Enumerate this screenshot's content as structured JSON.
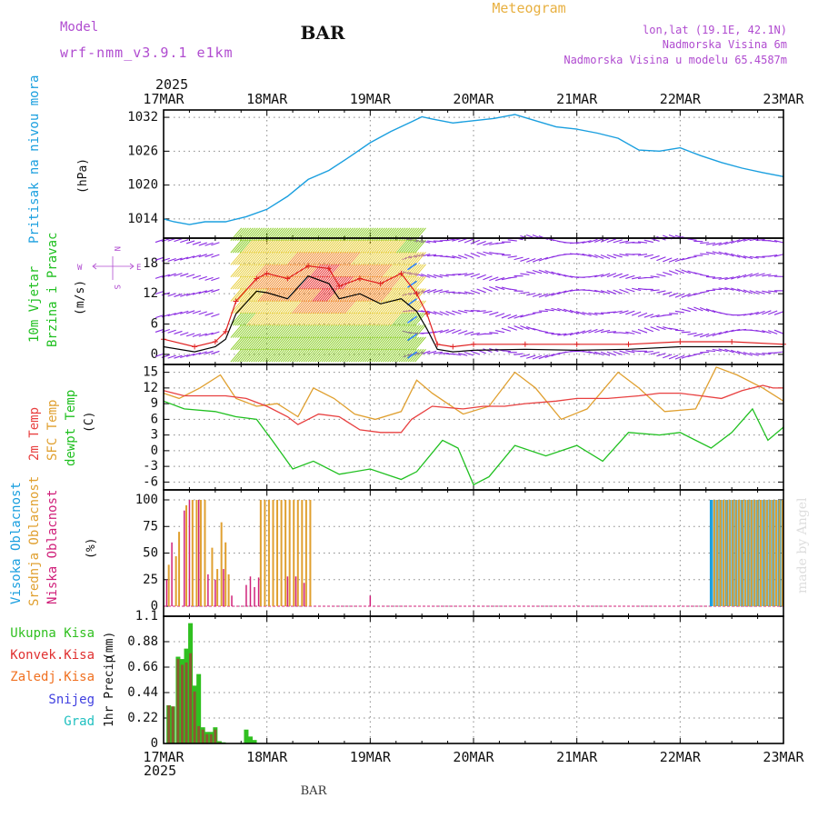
{
  "header": {
    "model_label": "Model",
    "model_name": "wrf-nmm_v3.9.1 e1km",
    "station": "BAR",
    "product": "Meteogram",
    "lonlat": "lon,lat (19.1E, 42.1N)",
    "elevation": "Nadmorska Visina 6m",
    "model_elevation": "Nadmorska Visina u modelu 65.4587m",
    "year_top": "2025",
    "year_bottom": "2025",
    "footer_station": "BAR",
    "credit": "made by Angel"
  },
  "colors": {
    "pressure": "#1a9fdf",
    "wind_avg": "#000000",
    "gust": "#e02020",
    "temp2m": "#e84040",
    "sfc_temp": "#e0a030",
    "dewpt": "#20c020",
    "high_cloud": "#1a9fdf",
    "mid_cloud": "#e0a030",
    "low_cloud": "#d0207a",
    "total_precip": "#30c020",
    "conv_precip": "#e03030",
    "frozen": "#f07020",
    "snow": "#4040e0",
    "hail": "#20c0c0",
    "label_purple": "#b04cd0",
    "label_orange": "#e8b040"
  },
  "chart_data": [
    {
      "type": "line",
      "panel": "pressure",
      "ylabel_name": "Pritisak na nivou mora",
      "ylabel_unit": "(hPa)",
      "x_ticks": [
        "17MAR",
        "18MAR",
        "19MAR",
        "20MAR",
        "21MAR",
        "22MAR",
        "23MAR"
      ],
      "y_ticks": [
        "1014",
        "1020",
        "1026",
        "1032"
      ],
      "ylim": [
        1010.6,
        1033.3
      ],
      "series": [
        {
          "x": [
            0,
            0.1,
            0.25,
            0.4,
            0.6,
            0.8,
            1.0,
            1.2,
            1.4,
            1.6,
            1.8,
            2.0,
            2.2,
            2.4,
            2.5,
            2.6,
            2.8,
            3.0,
            3.2,
            3.4,
            3.6,
            3.8,
            4.0,
            4.2,
            4.4,
            4.6,
            4.8,
            5.0,
            5.2,
            5.4,
            5.6,
            5.8,
            6.0
          ],
          "y": [
            1014,
            1013.5,
            1013.0,
            1013.5,
            1013.5,
            1014.4,
            1015.7,
            1018.0,
            1021.0,
            1022.6,
            1025.0,
            1027.5,
            1029.5,
            1031.2,
            1032.1,
            1031.7,
            1031.0,
            1031.4,
            1031.8,
            1032.5,
            1031.4,
            1030.3,
            1029.9,
            1029.2,
            1028.3,
            1026.2,
            1026.0,
            1026.6,
            1025.2,
            1024.0,
            1023.0,
            1022.2,
            1021.5
          ]
        }
      ]
    },
    {
      "type": "line",
      "panel": "wind",
      "ylabel_name": "10m Vjetar",
      "ylabel_name2": "Brzina i Pravac",
      "ylabel_unit": "(m/s)",
      "y_ticks": [
        "0",
        "6",
        "12",
        "18"
      ],
      "ylim": [
        -2,
        23
      ],
      "compass": {
        "n": "N",
        "s": "S",
        "e": "E",
        "w": "W"
      },
      "series": [
        {
          "name": "avg",
          "x": [
            0,
            0.3,
            0.5,
            0.6,
            0.7,
            0.9,
            1.0,
            1.2,
            1.4,
            1.6,
            1.7,
            1.9,
            2.1,
            2.3,
            2.45,
            2.55,
            2.65,
            2.8,
            3.0,
            3.5,
            4.0,
            4.5,
            5.0,
            5.5,
            6.0
          ],
          "y": [
            1.5,
            0.5,
            1.5,
            3.0,
            8.0,
            12.5,
            12.2,
            11.0,
            15.5,
            14.0,
            11.0,
            12.0,
            10.0,
            11.0,
            8.5,
            5.0,
            1.0,
            0.5,
            0.8,
            1.0,
            0.8,
            1.0,
            1.5,
            1.5,
            1.5
          ]
        },
        {
          "name": "gust",
          "x": [
            0,
            0.3,
            0.5,
            0.6,
            0.7,
            0.9,
            1.0,
            1.2,
            1.4,
            1.6,
            1.7,
            1.9,
            2.1,
            2.3,
            2.45,
            2.55,
            2.65,
            2.8,
            3.0,
            3.5,
            4.0,
            4.5,
            5.0,
            5.5,
            6.0
          ],
          "y": [
            3.0,
            1.5,
            2.5,
            4.5,
            10.5,
            15.0,
            16.0,
            15.0,
            17.5,
            17.0,
            13.5,
            15.0,
            14.0,
            16.0,
            12.0,
            8.0,
            2.0,
            1.5,
            2.0,
            2.0,
            2.0,
            2.0,
            2.5,
            2.5,
            2.0
          ]
        }
      ]
    },
    {
      "type": "line",
      "panel": "temperature",
      "ylabel_name": "2m Temp",
      "ylabel_name2": "SFC Temp",
      "ylabel_name3": "dewpt Temp",
      "ylabel_unit": "(C)",
      "y_ticks": [
        "-6",
        "-3",
        "0",
        "3",
        "6",
        "9",
        "12",
        "15"
      ],
      "ylim": [
        -7.5,
        16.5
      ],
      "series": [
        {
          "name": "2m",
          "x": [
            0,
            0.2,
            0.4,
            0.6,
            0.8,
            1.0,
            1.2,
            1.3,
            1.5,
            1.7,
            1.9,
            2.1,
            2.3,
            2.4,
            2.6,
            2.9,
            3.1,
            3.3,
            3.5,
            3.8,
            4.0,
            4.3,
            4.6,
            4.8,
            5.0,
            5.2,
            5.4,
            5.6,
            5.8,
            5.9,
            6.0
          ],
          "y": [
            11.5,
            10.5,
            10.5,
            10.5,
            10.0,
            8.5,
            6.5,
            5.0,
            7.0,
            6.5,
            4.0,
            3.5,
            3.5,
            6.0,
            8.5,
            8.0,
            8.5,
            8.5,
            9.0,
            9.5,
            10.0,
            10.0,
            10.5,
            11.0,
            11.0,
            10.5,
            10.0,
            11.5,
            12.5,
            12.0,
            12.0
          ]
        },
        {
          "name": "sfc",
          "x": [
            0,
            0.15,
            0.35,
            0.55,
            0.7,
            0.9,
            1.1,
            1.3,
            1.45,
            1.65,
            1.85,
            2.05,
            2.3,
            2.45,
            2.6,
            2.9,
            3.15,
            3.4,
            3.6,
            3.85,
            4.1,
            4.4,
            4.6,
            4.85,
            5.15,
            5.35,
            5.55,
            5.8,
            6.0
          ],
          "y": [
            11.0,
            10.0,
            12.0,
            14.5,
            10.0,
            8.5,
            9.0,
            6.5,
            12.0,
            10.0,
            7.0,
            6.0,
            7.5,
            13.5,
            11.0,
            7.0,
            8.5,
            15.0,
            12.0,
            6.0,
            8.0,
            15.0,
            12.0,
            7.5,
            8.0,
            16.0,
            14.5,
            12.0,
            9.5
          ]
        },
        {
          "name": "dewpt",
          "x": [
            0,
            0.2,
            0.5,
            0.7,
            0.9,
            1.05,
            1.25,
            1.45,
            1.7,
            2.0,
            2.3,
            2.45,
            2.7,
            2.85,
            3.0,
            3.15,
            3.4,
            3.7,
            4.0,
            4.25,
            4.5,
            4.8,
            5.0,
            5.3,
            5.5,
            5.7,
            5.85,
            6.0
          ],
          "y": [
            9.5,
            8.0,
            7.5,
            6.5,
            6.0,
            2.0,
            -3.5,
            -2.0,
            -4.5,
            -3.5,
            -5.5,
            -4.0,
            2.0,
            0.5,
            -6.5,
            -5.0,
            1.0,
            -1.0,
            1.0,
            -2.0,
            3.5,
            3.0,
            3.5,
            0.5,
            3.5,
            8.0,
            2.0,
            4.5
          ]
        }
      ]
    },
    {
      "type": "bar",
      "panel": "cloud",
      "ylabel_name": "Visoka Oblacnost",
      "ylabel_name2": "Srednja Oblacnost",
      "ylabel_name3": "Niska Oblacnost",
      "ylabel_unit": "(%)",
      "y_ticks": [
        "0",
        "25",
        "50",
        "75",
        "100"
      ],
      "ylim": [
        0,
        100
      ],
      "series": [
        {
          "name": "mid",
          "x": [
            0.05,
            0.12,
            0.15,
            0.22,
            0.28,
            0.32,
            0.36,
            0.4,
            0.47,
            0.52,
            0.56,
            0.6,
            0.63,
            0.94,
            0.98,
            1.02,
            1.06,
            1.1,
            1.14,
            1.18,
            1.22,
            1.26,
            1.3,
            1.34,
            1.38,
            1.42,
            5.33,
            5.36,
            5.39,
            5.42,
            5.45,
            5.48,
            5.51,
            5.54,
            5.57,
            5.6,
            5.63,
            5.66,
            5.69,
            5.72,
            5.75,
            5.78,
            5.81,
            5.84,
            5.87,
            5.9,
            5.93,
            5.96,
            5.99
          ],
          "y": [
            39,
            47,
            70,
            95,
            100,
            100,
            100,
            100,
            55,
            35,
            79,
            60,
            30,
            100,
            100,
            100,
            100,
            100,
            100,
            100,
            100,
            100,
            100,
            100,
            100,
            100,
            100,
            100,
            100,
            100,
            100,
            100,
            100,
            100,
            100,
            100,
            100,
            100,
            100,
            100,
            100,
            100,
            100,
            100,
            100,
            100,
            100,
            100,
            100
          ]
        },
        {
          "name": "low",
          "x": [
            0.03,
            0.08,
            0.2,
            0.25,
            0.34,
            0.43,
            0.5,
            0.58,
            0.66,
            0.8,
            0.84,
            0.88,
            0.92,
            1.2,
            1.28,
            1.36,
            2.0
          ],
          "y": [
            25,
            60,
            90,
            100,
            100,
            30,
            25,
            35,
            10,
            20,
            28,
            18,
            27,
            28,
            28,
            22,
            10
          ]
        },
        {
          "name": "high",
          "x": [
            5.3,
            5.33,
            5.36,
            5.39,
            5.42,
            5.45,
            5.48,
            5.51,
            5.54,
            5.57,
            5.6,
            5.63,
            5.66,
            5.69,
            5.72,
            5.75,
            5.78,
            5.81,
            5.84,
            5.87,
            5.9,
            5.93,
            5.96,
            5.99
          ],
          "y": [
            100,
            100,
            100,
            100,
            100,
            100,
            100,
            100,
            100,
            100,
            100,
            100,
            100,
            100,
            100,
            100,
            100,
            100,
            100,
            100,
            100,
            100,
            100,
            100
          ]
        }
      ]
    },
    {
      "type": "bar",
      "panel": "precip",
      "ylabel_name": "1hr Precip",
      "ylabel_unit": "(mm)",
      "legend": [
        "Ukupna Kisa",
        "Konvek.Kisa",
        "Zaledj.Kisa",
        "Snijeg",
        "Grad"
      ],
      "x_ticks": [
        "17MAR",
        "18MAR",
        "19MAR",
        "20MAR",
        "21MAR",
        "22MAR",
        "23MAR"
      ],
      "y_ticks": [
        "0",
        "0.22",
        "0.44",
        "0.66",
        "0.88",
        "1.1"
      ],
      "ylim": [
        0,
        1.1
      ],
      "series": [
        {
          "name": "Ukupna Kisa",
          "x": [
            0.05,
            0.09,
            0.14,
            0.18,
            0.22,
            0.26,
            0.3,
            0.34,
            0.38,
            0.42,
            0.46,
            0.5,
            0.54,
            0.58,
            0.62,
            0.66,
            0.8,
            0.84,
            0.88
          ],
          "y": [
            0.33,
            0.32,
            0.75,
            0.73,
            0.82,
            1.04,
            0.5,
            0.6,
            0.14,
            0.1,
            0.1,
            0.14,
            0.02,
            0.01,
            0.0,
            0.0,
            0.12,
            0.06,
            0.03
          ]
        },
        {
          "name": "Konvek.Kisa",
          "x": [
            0.05,
            0.09,
            0.14,
            0.18,
            0.22,
            0.26,
            0.3,
            0.34,
            0.38,
            0.42,
            0.46,
            0.5,
            0.54,
            0.58,
            0.62,
            0.66,
            0.8,
            0.84,
            0.88
          ],
          "y": [
            0.33,
            0.32,
            0.73,
            0.68,
            0.7,
            0.78,
            0.45,
            0.15,
            0.12,
            0.08,
            0.08,
            0.12,
            0.01,
            0.0,
            0.0,
            0.0,
            0.0,
            0.0,
            0.0
          ]
        }
      ]
    }
  ]
}
